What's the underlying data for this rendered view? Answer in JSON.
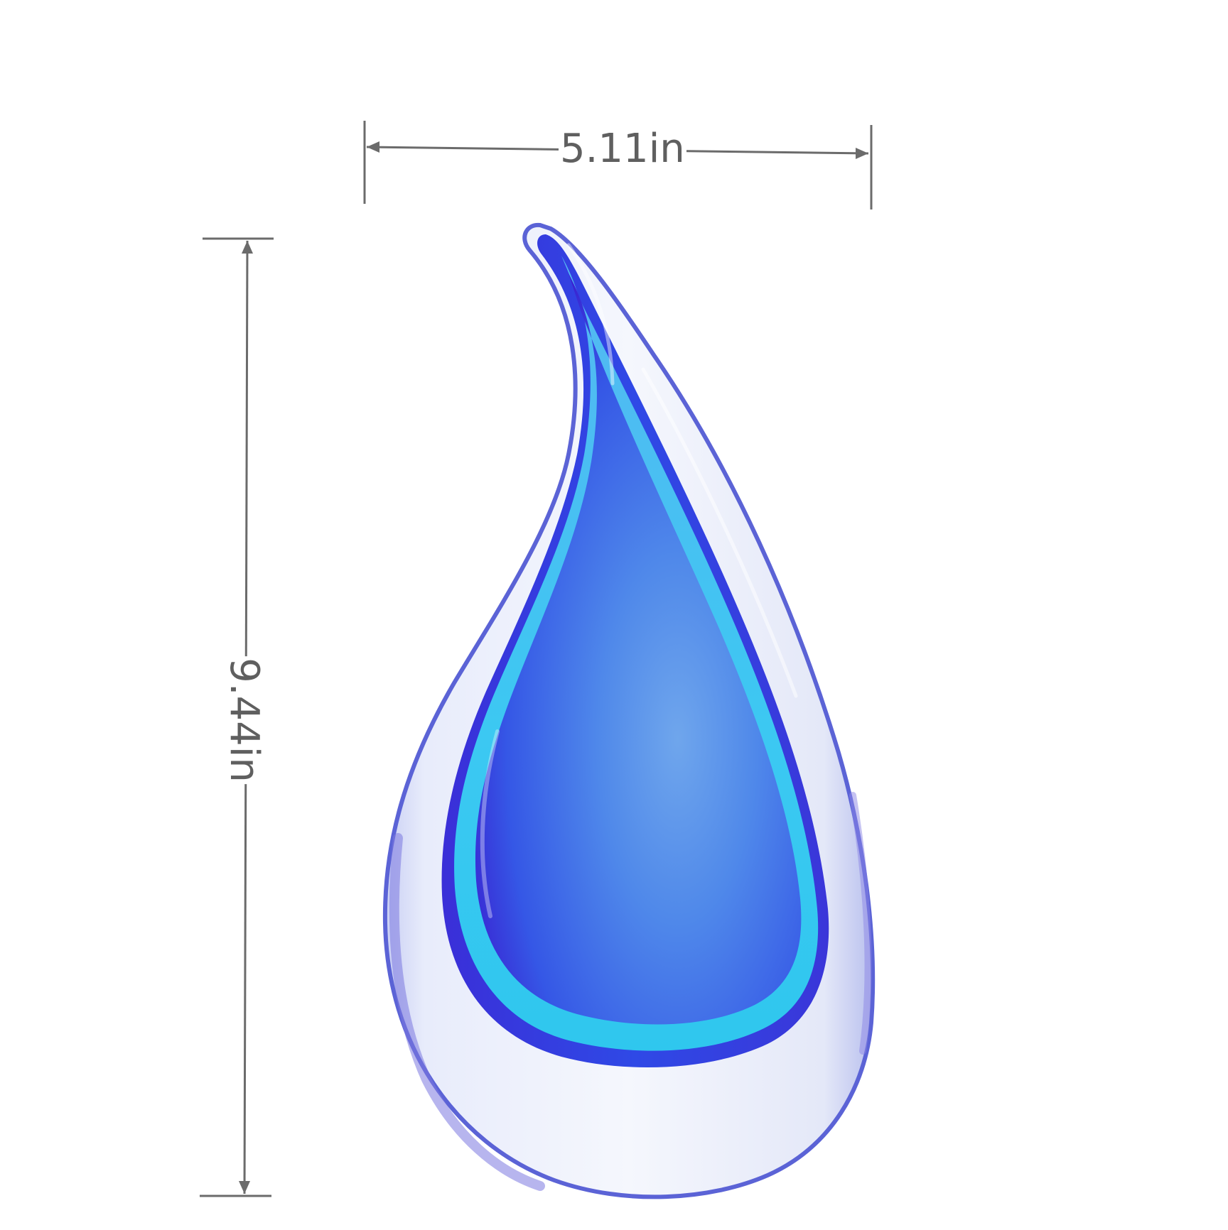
{
  "product_photo": {
    "subject": "blue-teardrop-glass-sculpture",
    "colors": {
      "outer_glass": "#eef3fb",
      "outer_rim": "#5b63d6",
      "aqua_layer": "#34bff0",
      "inner_blue": "#2f46e6",
      "inner_highlight": "#6aa7ee",
      "dimension_lines": "#6b6b6b"
    }
  },
  "dimensions": {
    "width_label": "5.11in",
    "height_label": "9.44in"
  }
}
